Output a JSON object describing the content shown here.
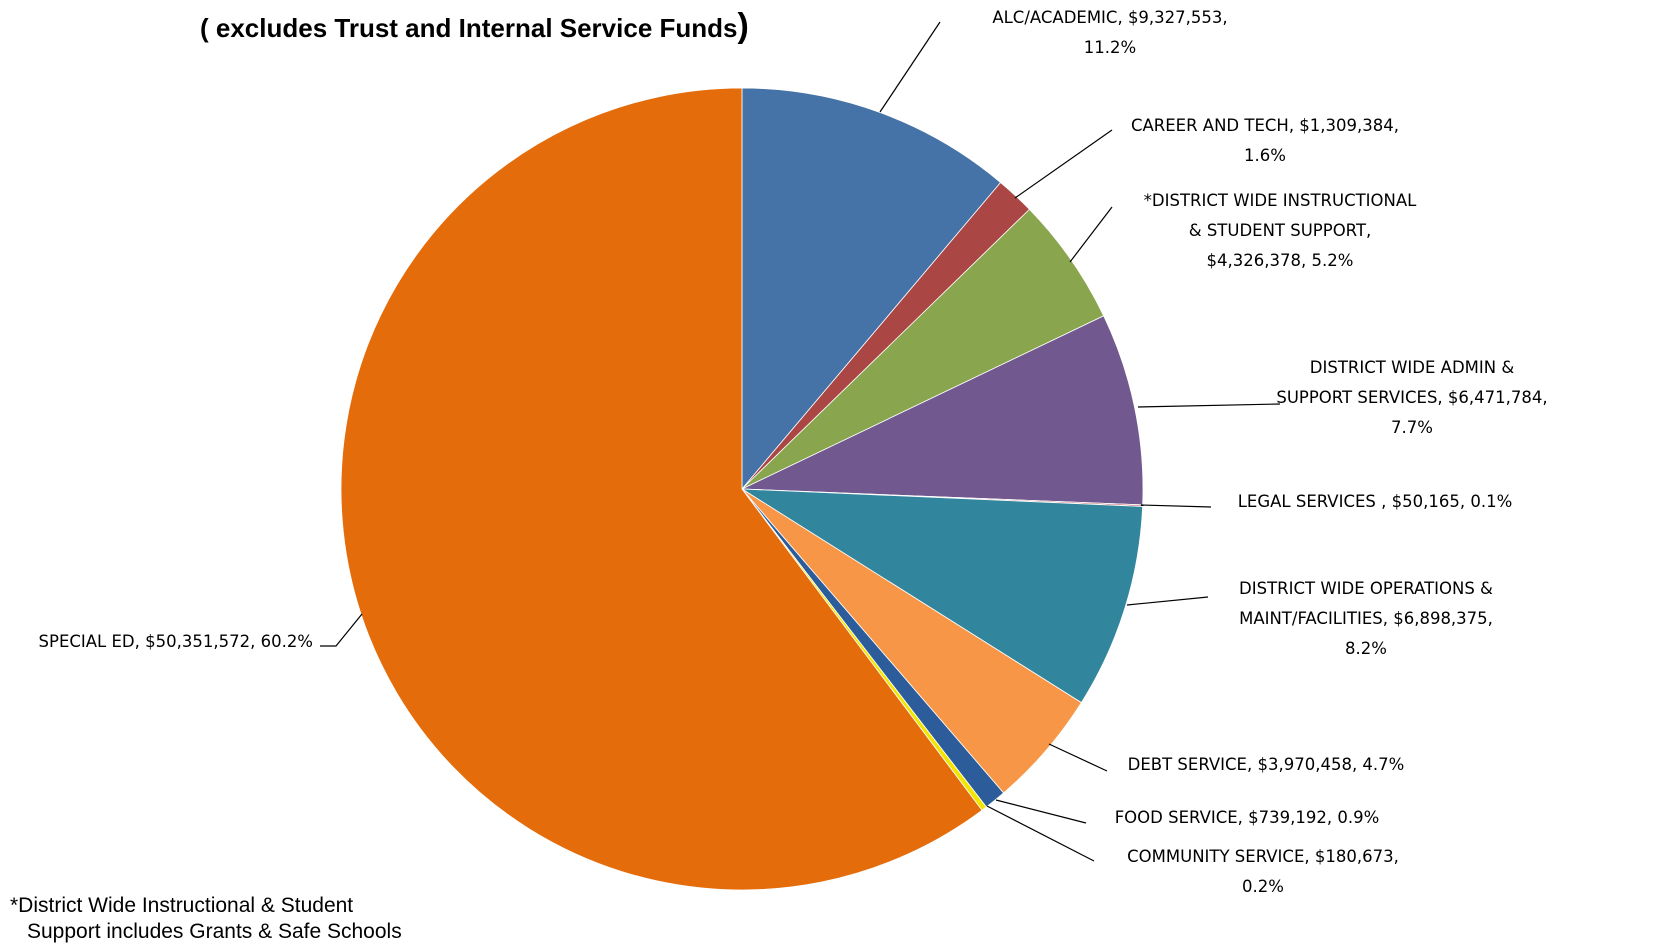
{
  "chart_data": {
    "type": "pie",
    "title_main": "( excludes Trust and Internal Service Funds",
    "title_close": ")",
    "start_angle_deg": 0,
    "direction": "clockwise",
    "slices": [
      {
        "name": "ALC/ACADEMIC",
        "value": 9327553,
        "percent": "11.2%",
        "color": "#4572a7",
        "label_lines": [
          "ALC/ACADEMIC, $9,327,553,",
          "11.2%"
        ]
      },
      {
        "name": "CAREER AND TECH",
        "value": 1309384,
        "percent": "1.6%",
        "color": "#aa4643",
        "label_lines": [
          "CAREER AND TECH, $1,309,384,",
          "1.6%"
        ]
      },
      {
        "name": "*DISTRICT WIDE INSTRUCTIONAL & STUDENT SUPPORT",
        "value": 4326378,
        "percent": "5.2%",
        "color": "#89a54e",
        "label_lines": [
          "*DISTRICT WIDE INSTRUCTIONAL",
          "& STUDENT SUPPORT,",
          "$4,326,378, 5.2%"
        ]
      },
      {
        "name": "DISTRICT WIDE ADMIN & SUPPORT SERVICES",
        "value": 6471784,
        "percent": "7.7%",
        "color": "#71588f",
        "label_lines": [
          "DISTRICT WIDE ADMIN &",
          "SUPPORT SERVICES, $6,471,784,",
          "7.7%"
        ]
      },
      {
        "name": "LEGAL SERVICES",
        "value": 50165,
        "percent": "0.1%",
        "color": "#c0504d",
        "label_lines": [
          "LEGAL SERVICES , $50,165, 0.1%"
        ]
      },
      {
        "name": "DISTRICT WIDE OPERATIONS & MAINT/FACILITIES",
        "value": 6898375,
        "percent": "8.2%",
        "color": "#31859c",
        "label_lines": [
          "DISTRICT WIDE OPERATIONS &",
          "MAINT/FACILITIES, $6,898,375,",
          "8.2%"
        ]
      },
      {
        "name": "DEBT SERVICE",
        "value": 3970458,
        "percent": "4.7%",
        "color": "#f79646",
        "label_lines": [
          "DEBT SERVICE, $3,970,458, 4.7%"
        ]
      },
      {
        "name": "FOOD SERVICE",
        "value": 739192,
        "percent": "0.9%",
        "color": "#2c5c99",
        "label_lines": [
          "FOOD SERVICE, $739,192, 0.9%"
        ]
      },
      {
        "name": "COMMUNITY SERVICE",
        "value": 180673,
        "percent": "0.2%",
        "color": "#f2e600",
        "label_lines": [
          "COMMUNITY SERVICE, $180,673,",
          "0.2%"
        ]
      },
      {
        "name": "SPECIAL ED",
        "value": 50351572,
        "percent": "60.2%",
        "color": "#e46c0a",
        "label_lines": [
          "SPECIAL ED, $50,351,572, 60.2%"
        ]
      }
    ]
  },
  "footnote": {
    "line1": "*District Wide Instructional & Student",
    "line2": "Support includes Grants & Safe Schools"
  }
}
